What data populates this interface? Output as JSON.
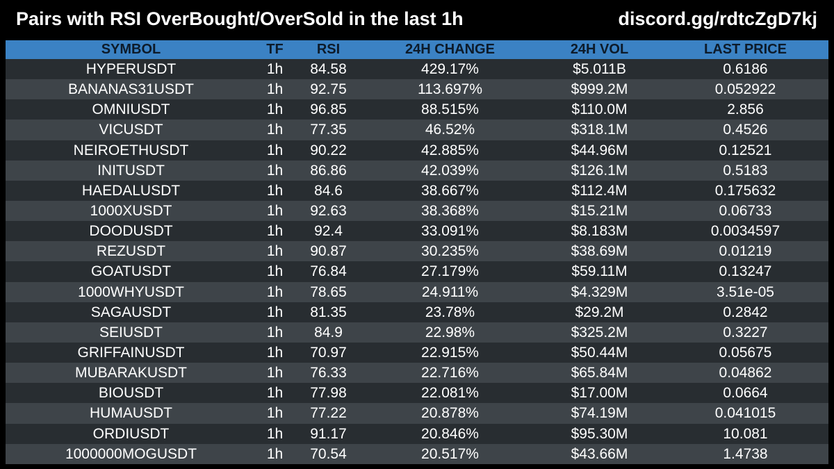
{
  "header": {
    "title": "Pairs with RSI OverBought/OverSold in the last 1h",
    "invite": "discord.gg/rdtcZgD7kj"
  },
  "colors": {
    "background": "#000000",
    "header_row": "#3b82c4",
    "row_dark": "#282d31",
    "row_light": "#3e4449"
  },
  "table": {
    "columns": [
      "SYMBOL",
      "TF",
      "RSI",
      "24H CHANGE",
      "24H VOL",
      "LAST PRICE"
    ],
    "rows": [
      [
        "HYPERUSDT",
        "1h",
        "84.58",
        "429.17%",
        "$5.011B",
        "0.6186"
      ],
      [
        "BANANAS31USDT",
        "1h",
        "92.75",
        "113.697%",
        "$999.2M",
        "0.052922"
      ],
      [
        "OMNIUSDT",
        "1h",
        "96.85",
        "88.515%",
        "$110.0M",
        "2.856"
      ],
      [
        "VICUSDT",
        "1h",
        "77.35",
        "46.52%",
        "$318.1M",
        "0.4526"
      ],
      [
        "NEIROETHUSDT",
        "1h",
        "90.22",
        "42.885%",
        "$44.96M",
        "0.12521"
      ],
      [
        "INITUSDT",
        "1h",
        "86.86",
        "42.039%",
        "$126.1M",
        "0.5183"
      ],
      [
        "HAEDALUSDT",
        "1h",
        "84.6",
        "38.667%",
        "$112.4M",
        "0.175632"
      ],
      [
        "1000XUSDT",
        "1h",
        "92.63",
        "38.368%",
        "$15.21M",
        "0.06733"
      ],
      [
        "DOODUSDT",
        "1h",
        "92.4",
        "33.091%",
        "$8.183M",
        "0.0034597"
      ],
      [
        "REZUSDT",
        "1h",
        "90.87",
        "30.235%",
        "$38.69M",
        "0.01219"
      ],
      [
        "GOATUSDT",
        "1h",
        "76.84",
        "27.179%",
        "$59.11M",
        "0.13247"
      ],
      [
        "1000WHYUSDT",
        "1h",
        "78.65",
        "24.911%",
        "$4.329M",
        "3.51e-05"
      ],
      [
        "SAGAUSDT",
        "1h",
        "81.35",
        "23.78%",
        "$29.2M",
        "0.2842"
      ],
      [
        "SEIUSDT",
        "1h",
        "84.9",
        "22.98%",
        "$325.2M",
        "0.3227"
      ],
      [
        "GRIFFAINUSDT",
        "1h",
        "70.97",
        "22.915%",
        "$50.44M",
        "0.05675"
      ],
      [
        "MUBARAKUSDT",
        "1h",
        "76.33",
        "22.716%",
        "$65.84M",
        "0.04862"
      ],
      [
        "BIOUSDT",
        "1h",
        "77.98",
        "22.081%",
        "$17.00M",
        "0.0664"
      ],
      [
        "HUMAUSDT",
        "1h",
        "77.22",
        "20.878%",
        "$74.19M",
        "0.041015"
      ],
      [
        "ORDIUSDT",
        "1h",
        "91.17",
        "20.846%",
        "$95.30M",
        "10.081"
      ],
      [
        "1000000MOGUSDT",
        "1h",
        "70.54",
        "20.517%",
        "$43.66M",
        "1.4738"
      ]
    ]
  }
}
